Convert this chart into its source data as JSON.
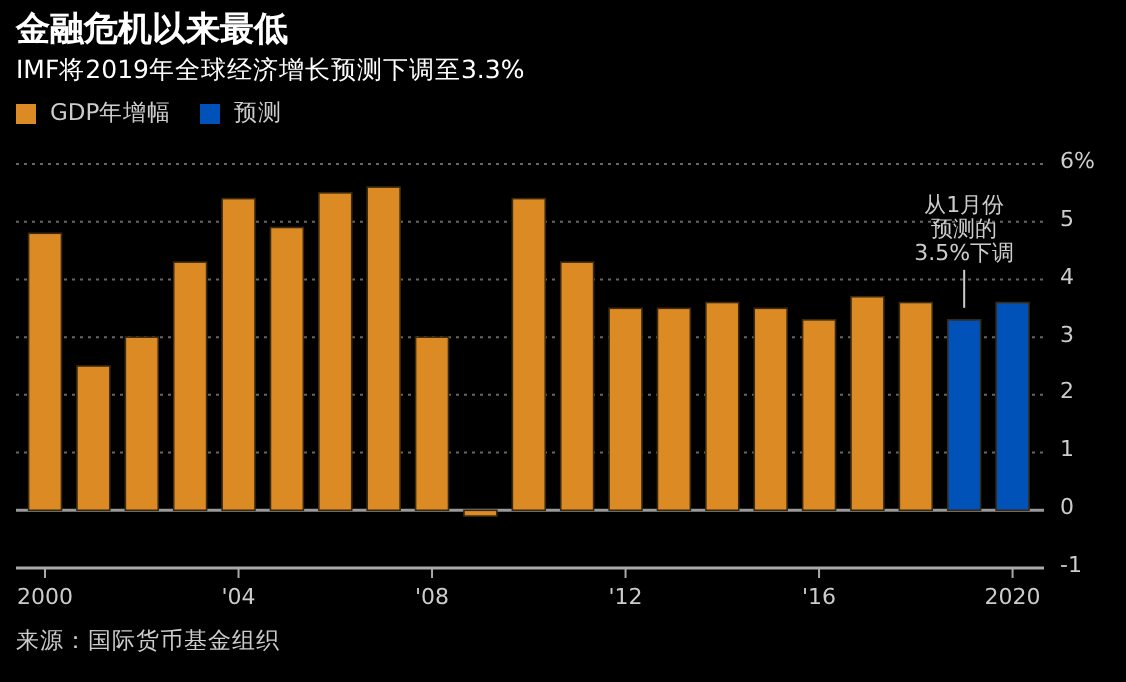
{
  "chart_data": {
    "type": "bar",
    "title": "金融危机以来最低",
    "subtitle": "IMF将2019年全球经济增长预测下调至3.3%",
    "x": [
      2000,
      2001,
      2002,
      2003,
      2004,
      2005,
      2006,
      2007,
      2008,
      2009,
      2010,
      2011,
      2012,
      2013,
      2014,
      2015,
      2016,
      2017,
      2018,
      2019,
      2020
    ],
    "series": [
      {
        "name": "GDP年增幅",
        "color": "#dc8a24",
        "values": [
          4.8,
          2.5,
          3.0,
          4.3,
          5.4,
          4.9,
          5.5,
          5.6,
          3.0,
          -0.1,
          5.4,
          4.3,
          3.5,
          3.5,
          3.6,
          3.5,
          3.3,
          3.7,
          3.6,
          null,
          null
        ]
      },
      {
        "name": "预测",
        "color": "#0052b8",
        "values": [
          null,
          null,
          null,
          null,
          null,
          null,
          null,
          null,
          null,
          null,
          null,
          null,
          null,
          null,
          null,
          null,
          null,
          null,
          null,
          3.3,
          3.6
        ]
      }
    ],
    "xlim": [
      1999.4,
      2020.65
    ],
    "ylim": [
      -1,
      6
    ],
    "xticks": [
      2000,
      {
        "value": 2004,
        "label": "'04"
      },
      {
        "value": 2008,
        "label": "'08"
      },
      {
        "value": 2012,
        "label": "'12"
      },
      {
        "value": 2016,
        "label": "'16"
      },
      2020
    ],
    "yticks": [
      -1,
      0,
      1,
      2,
      3,
      4,
      5,
      {
        "value": 6,
        "label": "6%"
      }
    ],
    "grid": "y",
    "legend": "top left",
    "annotations": [
      {
        "text": "从1月份预测的3.5%下调",
        "x": 2019,
        "y": 3.3
      },
      "来源：国际货币基金组织"
    ]
  }
}
